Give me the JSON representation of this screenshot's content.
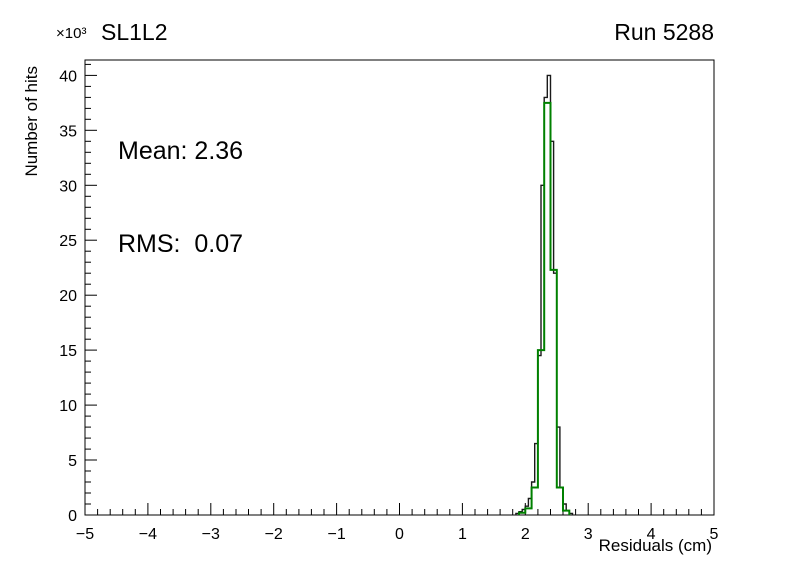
{
  "chart_data": {
    "type": "line",
    "title": "SL1L2",
    "corner_label": "Run 5288",
    "xlabel": "Residuals (cm)",
    "ylabel": "Number of hits",
    "y_unit_label": "×10³",
    "xlim": [
      -5,
      5
    ],
    "ylim": [
      0,
      41.4
    ],
    "grid": false,
    "legend": "none",
    "annotations": [
      "Mean: 2.36",
      "RMS:  0.07"
    ],
    "x_ticks": [
      {
        "v": -5,
        "label": "−5"
      },
      {
        "v": -4,
        "label": "−4"
      },
      {
        "v": -3,
        "label": "−3"
      },
      {
        "v": -2,
        "label": "−2"
      },
      {
        "v": -1,
        "label": "−1"
      },
      {
        "v": 0,
        "label": "0"
      },
      {
        "v": 1,
        "label": "1"
      },
      {
        "v": 2,
        "label": "2"
      },
      {
        "v": 3,
        "label": "3"
      },
      {
        "v": 4,
        "label": "4"
      },
      {
        "v": 5,
        "label": "5"
      }
    ],
    "y_ticks": [
      {
        "v": 0,
        "label": "0"
      },
      {
        "v": 5,
        "label": "5"
      },
      {
        "v": 10,
        "label": "10"
      },
      {
        "v": 15,
        "label": "15"
      },
      {
        "v": 20,
        "label": "20"
      },
      {
        "v": 25,
        "label": "25"
      },
      {
        "v": 30,
        "label": "30"
      },
      {
        "v": 35,
        "label": "35"
      },
      {
        "v": 40,
        "label": "40"
      }
    ],
    "x_minor_step": 0.2,
    "y_minor_step": 1,
    "values_unit": "10^3 hits",
    "series": [
      {
        "name": "residuals-histogram",
        "color": "#1a1a1a",
        "line_width": 1.4,
        "bin_width": 0.05,
        "bins": [
          [
            1.85,
            0.15
          ],
          [
            1.9,
            0.3
          ],
          [
            1.95,
            0.5
          ],
          [
            2.0,
            0.8
          ],
          [
            2.05,
            1.5
          ],
          [
            2.1,
            3.0
          ],
          [
            2.15,
            6.5
          ],
          [
            2.2,
            14.5
          ],
          [
            2.25,
            30.0
          ],
          [
            2.3,
            38.0
          ],
          [
            2.35,
            40.0
          ],
          [
            2.4,
            34.0
          ],
          [
            2.45,
            22.0
          ],
          [
            2.5,
            8.0
          ],
          [
            2.55,
            2.5
          ],
          [
            2.6,
            1.0
          ],
          [
            2.65,
            0.4
          ],
          [
            2.7,
            0.15
          ]
        ]
      },
      {
        "name": "fit-overlay-histogram",
        "color": "#008000",
        "line_width": 2,
        "bin_width": 0.1,
        "bins": [
          [
            1.9,
            0.2
          ],
          [
            2.0,
            0.6
          ],
          [
            2.1,
            2.5
          ],
          [
            2.2,
            15.0
          ],
          [
            2.3,
            37.5
          ],
          [
            2.4,
            22.3
          ],
          [
            2.5,
            2.5
          ],
          [
            2.6,
            0.4
          ]
        ]
      }
    ]
  }
}
